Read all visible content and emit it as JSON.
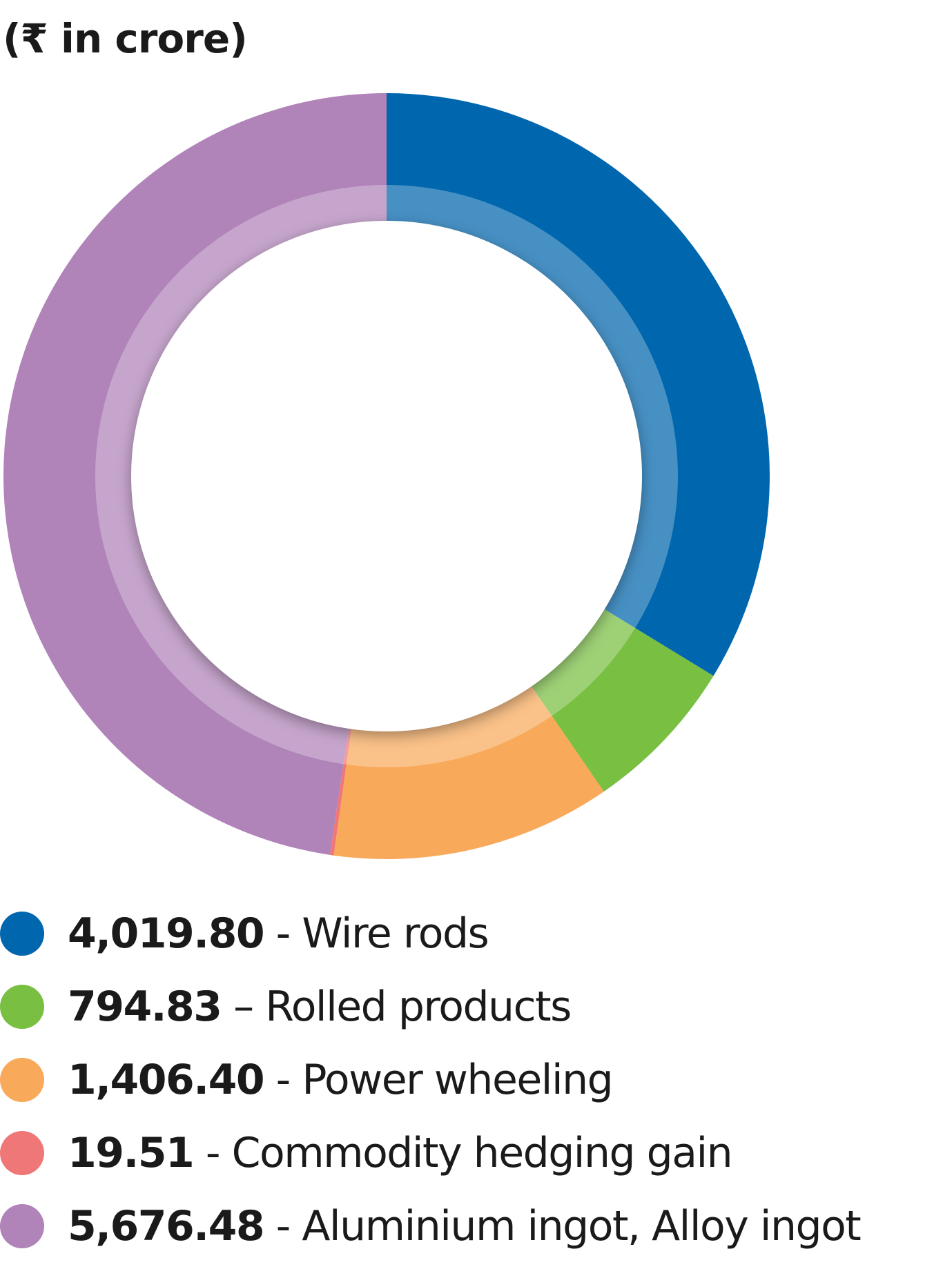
{
  "unit_label": "(₹ in crore)",
  "chart_data": {
    "type": "pie",
    "variant": "donut",
    "title": "",
    "unit": "₹ in crore",
    "legend_position": "bottom",
    "start_angle": "12 o'clock, clockwise",
    "slices": [
      {
        "label": "Wire rods",
        "value": 4019.8,
        "value_text": "4,019.80",
        "separator": " - ",
        "color": "#0066ad"
      },
      {
        "label": "Rolled products",
        "value": 794.83,
        "value_text": "794.83",
        "separator": " – ",
        "color": "#79bf42"
      },
      {
        "label": "Power wheeling",
        "value": 1406.4,
        "value_text": "1,406.40",
        "separator": " - ",
        "color": "#f8a95a"
      },
      {
        "label": "Commodity hedging gain",
        "value": 19.51,
        "value_text": "19.51",
        "separator": " - ",
        "color": "#f07777"
      },
      {
        "label": "Aluminium ingot, Alloy ingot",
        "value": 5676.48,
        "value_text": "5,676.48",
        "separator": " - ",
        "color": "#b083b9"
      }
    ]
  }
}
